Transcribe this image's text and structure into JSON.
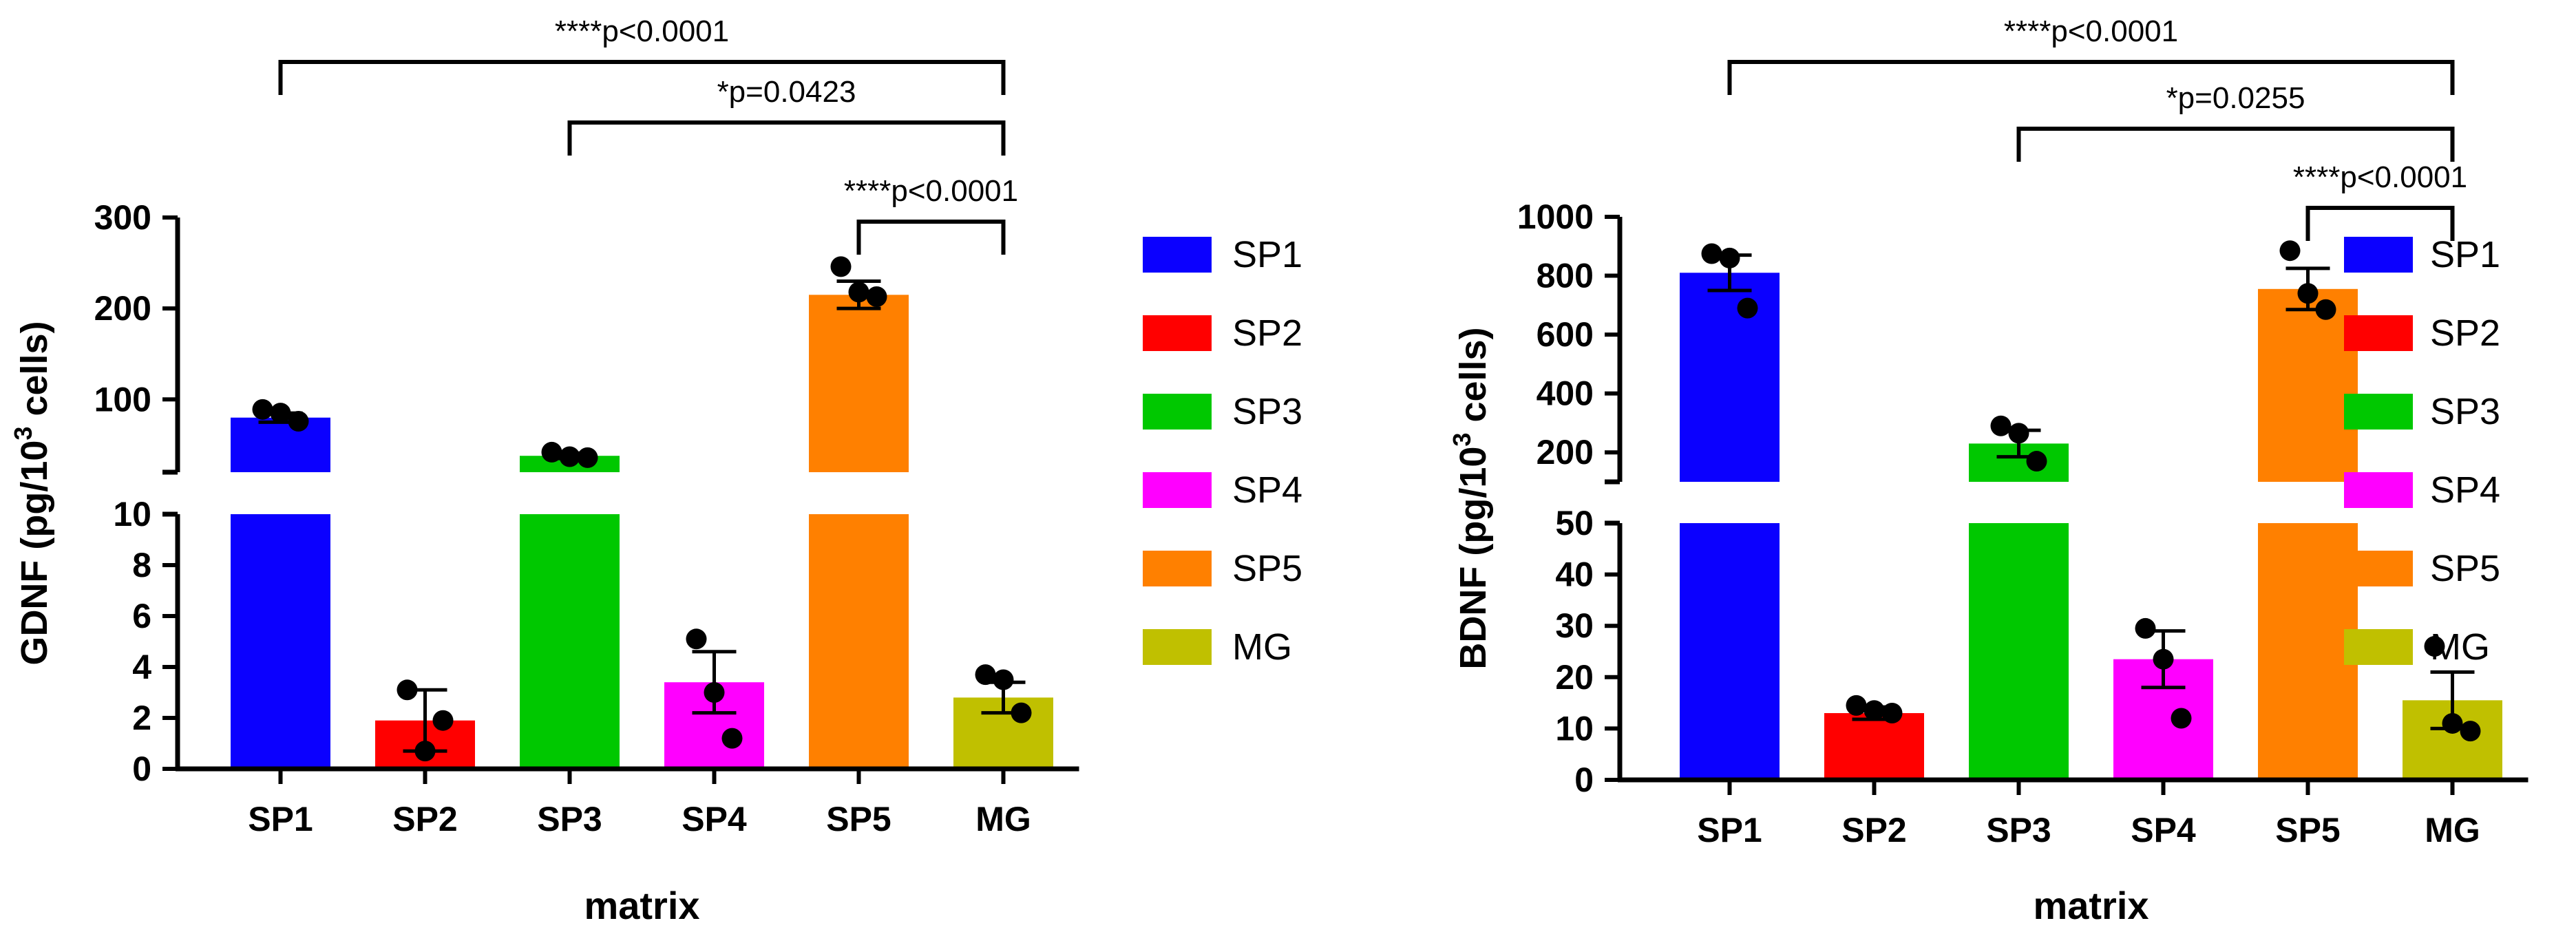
{
  "chart_data": [
    {
      "type": "bar",
      "title": "",
      "xlabel": "matrix",
      "ylabel": "GDNF (pg/10",
      "ylabel_sup": "3",
      "ylabel_tail": " cells)",
      "categories": [
        "SP1",
        "SP2",
        "SP3",
        "SP4",
        "SP5",
        "MG"
      ],
      "values": [
        80,
        1.9,
        38,
        3.4,
        215,
        2.8
      ],
      "errors": [
        5,
        1.2,
        3,
        1.2,
        15,
        0.6
      ],
      "points": [
        [
          89,
          85,
          76
        ],
        [
          3.1,
          0.7,
          1.9
        ],
        [
          42,
          37,
          36
        ],
        [
          5.1,
          3.0,
          1.2
        ],
        [
          246,
          218,
          213
        ],
        [
          3.7,
          3.5,
          2.2
        ]
      ],
      "colors": [
        "#0b00ff",
        "#ff0000",
        "#00c800",
        "#ff00ff",
        "#ff8000",
        "#c0c000"
      ],
      "axis_break": {
        "lower": {
          "range": [
            0,
            10
          ],
          "ticks": [
            "0",
            "2",
            "4",
            "6",
            "8",
            "10"
          ]
        },
        "upper": {
          "range": [
            20,
            300
          ],
          "ticks": [
            "100",
            "200",
            "300"
          ]
        }
      },
      "significance": [
        {
          "label": "****p<0.0001",
          "from": "SP1",
          "to": "MG"
        },
        {
          "label": "*p=0.0423",
          "from": "SP3",
          "to": "MG"
        },
        {
          "label": "****p<0.0001",
          "from": "SP5",
          "to": "MG"
        }
      ],
      "legend": [
        "SP1",
        "SP2",
        "SP3",
        "SP4",
        "SP5",
        "MG"
      ]
    },
    {
      "type": "bar",
      "title": "",
      "xlabel": "matrix",
      "ylabel": "BDNF (pg/10",
      "ylabel_sup": "3",
      "ylabel_tail": " cells)",
      "categories": [
        "SP1",
        "SP2",
        "SP3",
        "SP4",
        "SP5",
        "MG"
      ],
      "values": [
        810,
        13,
        230,
        23.5,
        755,
        15.5
      ],
      "errors": [
        60,
        1.2,
        45,
        5.5,
        70,
        5.5
      ],
      "points": [
        [
          875,
          860,
          690
        ],
        [
          14.5,
          13.5,
          13.0
        ],
        [
          290,
          265,
          170
        ],
        [
          29.5,
          23.5,
          12.0
        ],
        [
          885,
          740,
          685
        ],
        [
          26,
          11,
          9.5
        ]
      ],
      "colors": [
        "#0b00ff",
        "#ff0000",
        "#00c800",
        "#ff00ff",
        "#ff8000",
        "#c0c000"
      ],
      "axis_break": {
        "lower": {
          "range": [
            0,
            50
          ],
          "ticks": [
            "0",
            "10",
            "20",
            "30",
            "40",
            "50"
          ]
        },
        "upper": {
          "range": [
            100,
            1000
          ],
          "ticks": [
            "200",
            "400",
            "600",
            "800",
            "1000"
          ]
        }
      },
      "significance": [
        {
          "label": "****p<0.0001",
          "from": "SP1",
          "to": "MG"
        },
        {
          "label": "*p=0.0255",
          "from": "SP3",
          "to": "MG"
        },
        {
          "label": "****p<0.0001",
          "from": "SP5",
          "to": "MG"
        }
      ],
      "legend": [
        "SP1",
        "SP2",
        "SP3",
        "SP4",
        "SP5",
        "MG"
      ]
    }
  ]
}
